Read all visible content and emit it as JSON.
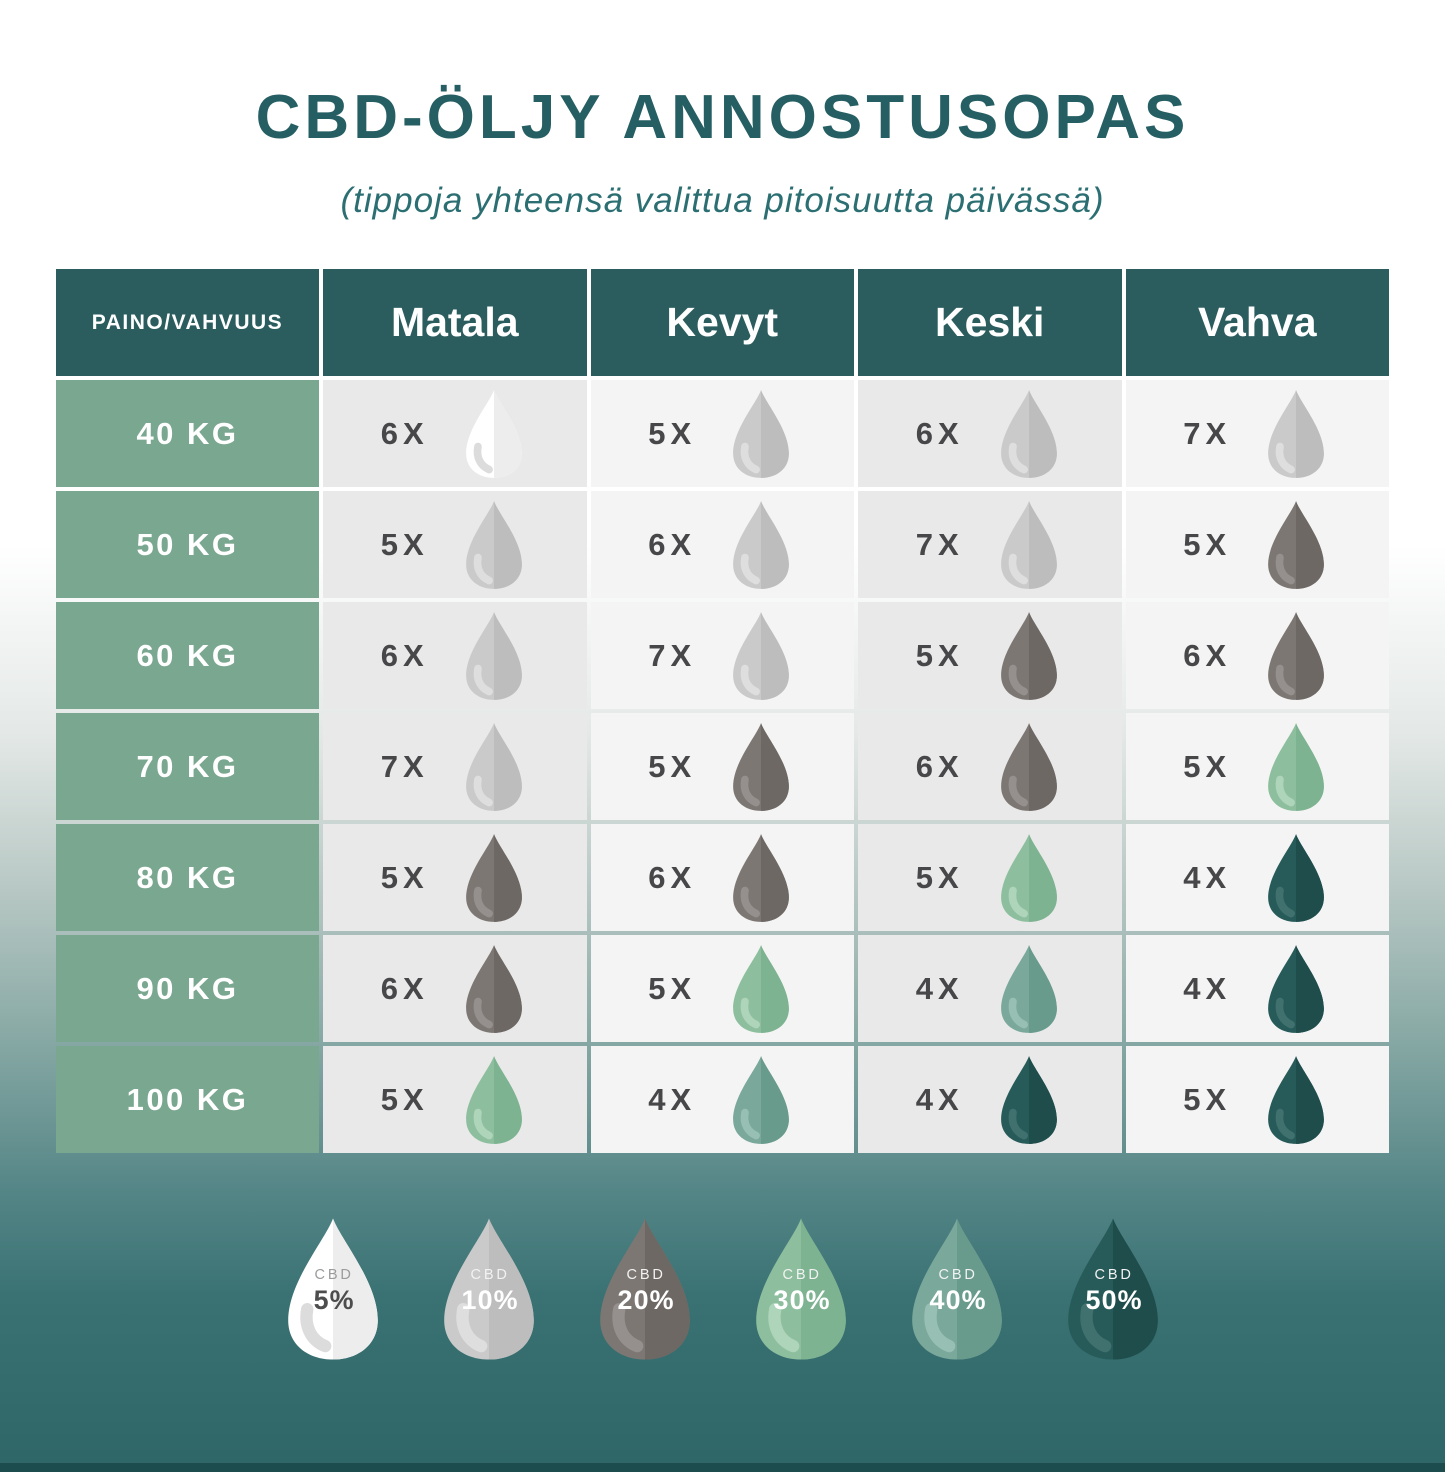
{
  "title": "CBD-ÖLJY ANNOSTUSOPAS",
  "subtitle": "(tippoja yhteensä valittua pitoisuutta päivässä)",
  "table": {
    "corner_header": "PAINO/VAHVUUS",
    "columns": [
      "Matala",
      "Kevyt",
      "Keski",
      "Vahva"
    ],
    "rows": [
      {
        "weight": "40 KG",
        "cells": [
          {
            "count": "6X",
            "strength": "5%"
          },
          {
            "count": "5X",
            "strength": "10%"
          },
          {
            "count": "6X",
            "strength": "10%"
          },
          {
            "count": "7X",
            "strength": "10%"
          }
        ]
      },
      {
        "weight": "50 KG",
        "cells": [
          {
            "count": "5X",
            "strength": "10%"
          },
          {
            "count": "6X",
            "strength": "10%"
          },
          {
            "count": "7X",
            "strength": "10%"
          },
          {
            "count": "5X",
            "strength": "20%"
          }
        ]
      },
      {
        "weight": "60 KG",
        "cells": [
          {
            "count": "6X",
            "strength": "10%"
          },
          {
            "count": "7X",
            "strength": "10%"
          },
          {
            "count": "5X",
            "strength": "20%"
          },
          {
            "count": "6X",
            "strength": "20%"
          }
        ]
      },
      {
        "weight": "70 KG",
        "cells": [
          {
            "count": "7X",
            "strength": "10%"
          },
          {
            "count": "5X",
            "strength": "20%"
          },
          {
            "count": "6X",
            "strength": "20%"
          },
          {
            "count": "5X",
            "strength": "30%"
          }
        ]
      },
      {
        "weight": "80 KG",
        "cells": [
          {
            "count": "5X",
            "strength": "20%"
          },
          {
            "count": "6X",
            "strength": "20%"
          },
          {
            "count": "5X",
            "strength": "30%"
          },
          {
            "count": "4X",
            "strength": "50%"
          }
        ]
      },
      {
        "weight": "90 KG",
        "cells": [
          {
            "count": "6X",
            "strength": "20%"
          },
          {
            "count": "5X",
            "strength": "30%"
          },
          {
            "count": "4X",
            "strength": "40%"
          },
          {
            "count": "4X",
            "strength": "50%"
          }
        ]
      },
      {
        "weight": "100 KG",
        "cells": [
          {
            "count": "5X",
            "strength": "30%"
          },
          {
            "count": "4X",
            "strength": "40%"
          },
          {
            "count": "4X",
            "strength": "50%"
          },
          {
            "count": "5X",
            "strength": "50%"
          }
        ]
      }
    ]
  },
  "legend": {
    "label": "CBD",
    "items": [
      "5%",
      "10%",
      "20%",
      "30%",
      "40%",
      "50%"
    ]
  },
  "chart_data": {
    "type": "table",
    "title": "CBD-ÖLJY ANNOSTUSOPAS",
    "subtitle": "(tippoja yhteensä valittua pitoisuutta päivässä)",
    "row_header": "PAINO/VAHVUUS",
    "columns": [
      "Matala",
      "Kevyt",
      "Keski",
      "Vahva"
    ],
    "rows": [
      "40 KG",
      "50 KG",
      "60 KG",
      "70 KG",
      "80 KG",
      "90 KG",
      "100 KG"
    ],
    "drops_per_day": [
      [
        6,
        5,
        6,
        7
      ],
      [
        5,
        6,
        7,
        5
      ],
      [
        6,
        7,
        5,
        6
      ],
      [
        7,
        5,
        6,
        5
      ],
      [
        5,
        6,
        5,
        4
      ],
      [
        6,
        5,
        4,
        4
      ],
      [
        5,
        4,
        4,
        5
      ]
    ],
    "cbd_strength_percent": [
      [
        5,
        10,
        10,
        10
      ],
      [
        10,
        10,
        10,
        20
      ],
      [
        10,
        10,
        20,
        20
      ],
      [
        10,
        20,
        20,
        30
      ],
      [
        20,
        20,
        30,
        50
      ],
      [
        20,
        30,
        40,
        50
      ],
      [
        30,
        40,
        50,
        50
      ]
    ],
    "legend_percents": [
      5,
      10,
      20,
      30,
      40,
      50
    ]
  },
  "colors": {
    "title_color": "#265f63",
    "subtitle_color": "#2c6f72",
    "header_teal": "#2b5d5f",
    "weight_green": "#7aa78f",
    "cell_dark": "#e9e9e9",
    "cell_light": "#f4f4f4",
    "count_text": "#47474a",
    "gradient_bottom": "#2e6567",
    "footer_strip": "#1d4c4f",
    "drops": {
      "5%": {
        "left": "#ffffff",
        "right": "#ededed",
        "highlight": "#dcdcdc"
      },
      "10%": {
        "left": "#cacaca",
        "right": "#bdbdbd",
        "highlight": "#dedede"
      },
      "20%": {
        "left": "#7d7774",
        "right": "#6e6865",
        "highlight": "#95908d"
      },
      "30%": {
        "left": "#8dbf9e",
        "right": "#7db391",
        "highlight": "#aed4ba"
      },
      "40%": {
        "left": "#7aa89b",
        "right": "#699b8d",
        "highlight": "#97bfb3"
      },
      "50%": {
        "left": "#275b59",
        "right": "#1e4d4c",
        "highlight": "#40716f"
      }
    },
    "legend_text": {
      "5%": {
        "cbd": "#9b9b9b",
        "pct": "#4d4d4d"
      },
      "default": {
        "cbd": "#f2f2f2",
        "pct": "#ffffff"
      }
    }
  }
}
